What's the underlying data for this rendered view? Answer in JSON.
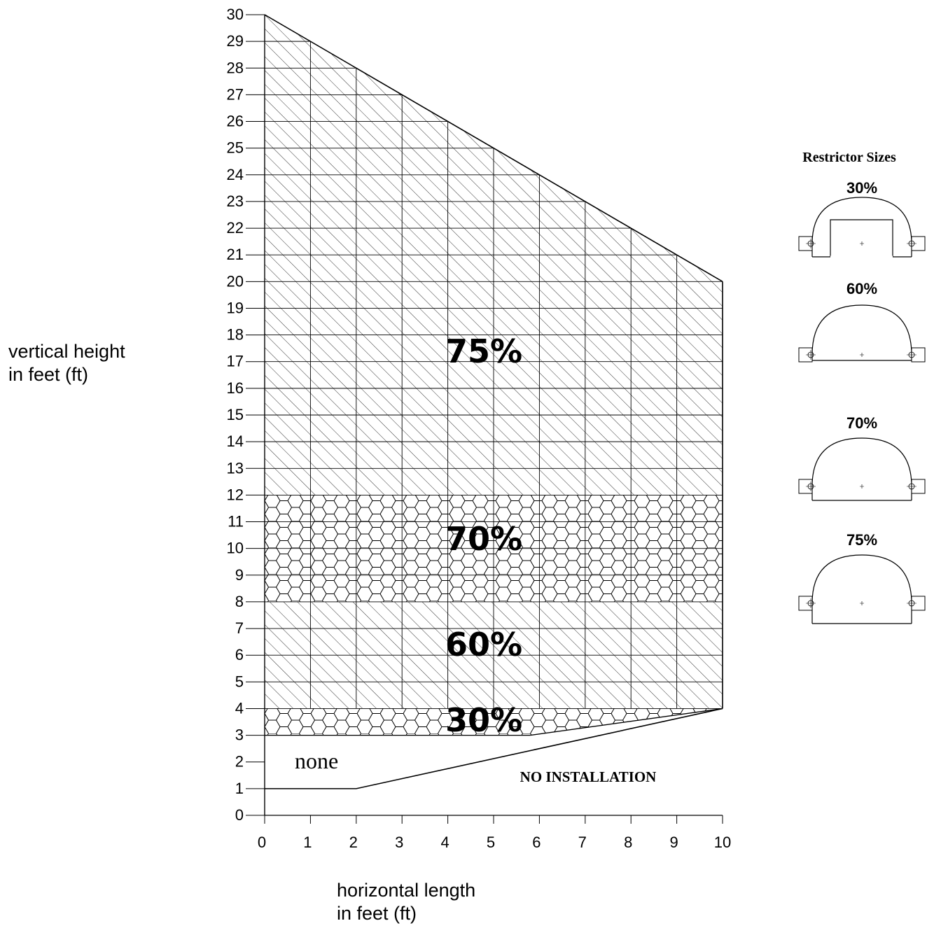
{
  "axis_titles": {
    "y_line1": "vertical height",
    "y_line2": "in feet (ft)",
    "x_line1": "horizontal length",
    "x_line2": "in feet (ft)"
  },
  "chart_data": {
    "type": "area",
    "xlabel": "horizontal length in feet (ft)",
    "ylabel": "vertical height in feet (ft)",
    "xlim": [
      0,
      10
    ],
    "ylim": [
      0,
      30
    ],
    "x_ticks": [
      0,
      1,
      2,
      3,
      4,
      5,
      6,
      7,
      8,
      9,
      10
    ],
    "y_ticks": [
      0,
      1,
      2,
      3,
      4,
      5,
      6,
      7,
      8,
      9,
      10,
      11,
      12,
      13,
      14,
      15,
      16,
      17,
      18,
      19,
      20,
      21,
      22,
      23,
      24,
      25,
      26,
      27,
      28,
      29,
      30
    ],
    "grid": true,
    "max_height_boundary": {
      "x": [
        0,
        10
      ],
      "y": [
        30,
        20
      ]
    },
    "min_height_boundary": {
      "x": [
        0,
        2,
        10
      ],
      "y": [
        1,
        1,
        4
      ]
    },
    "lower_30pct_boundary": {
      "x": [
        5.8,
        10
      ],
      "y": [
        3,
        4
      ]
    },
    "zones": [
      {
        "name": "75%",
        "y_from": 12,
        "y_to_left": 30,
        "y_to_right": 20,
        "pattern": "diagonal-hatch"
      },
      {
        "name": "70%",
        "y_from": 8,
        "y_to": 12,
        "pattern": "hexagon"
      },
      {
        "name": "60%",
        "y_from": 4,
        "y_to": 8,
        "pattern": "diagonal-hatch"
      },
      {
        "name": "30%",
        "y_from": 3,
        "y_to": 4,
        "pattern": "hexagon"
      },
      {
        "name": "none",
        "y_from": 1,
        "y_to": 3,
        "pattern": "blank"
      }
    ],
    "annotations": [
      "75%",
      "70%",
      "60%",
      "30%",
      "none",
      "NO INSTALLATION"
    ]
  },
  "legend": {
    "title": "Restrictor Sizes",
    "items": [
      {
        "label": "30%",
        "shape": "arch-with-notch"
      },
      {
        "label": "60%",
        "shape": "low-arch"
      },
      {
        "label": "70%",
        "shape": "arch"
      },
      {
        "label": "75%",
        "shape": "tall-arch"
      }
    ]
  }
}
